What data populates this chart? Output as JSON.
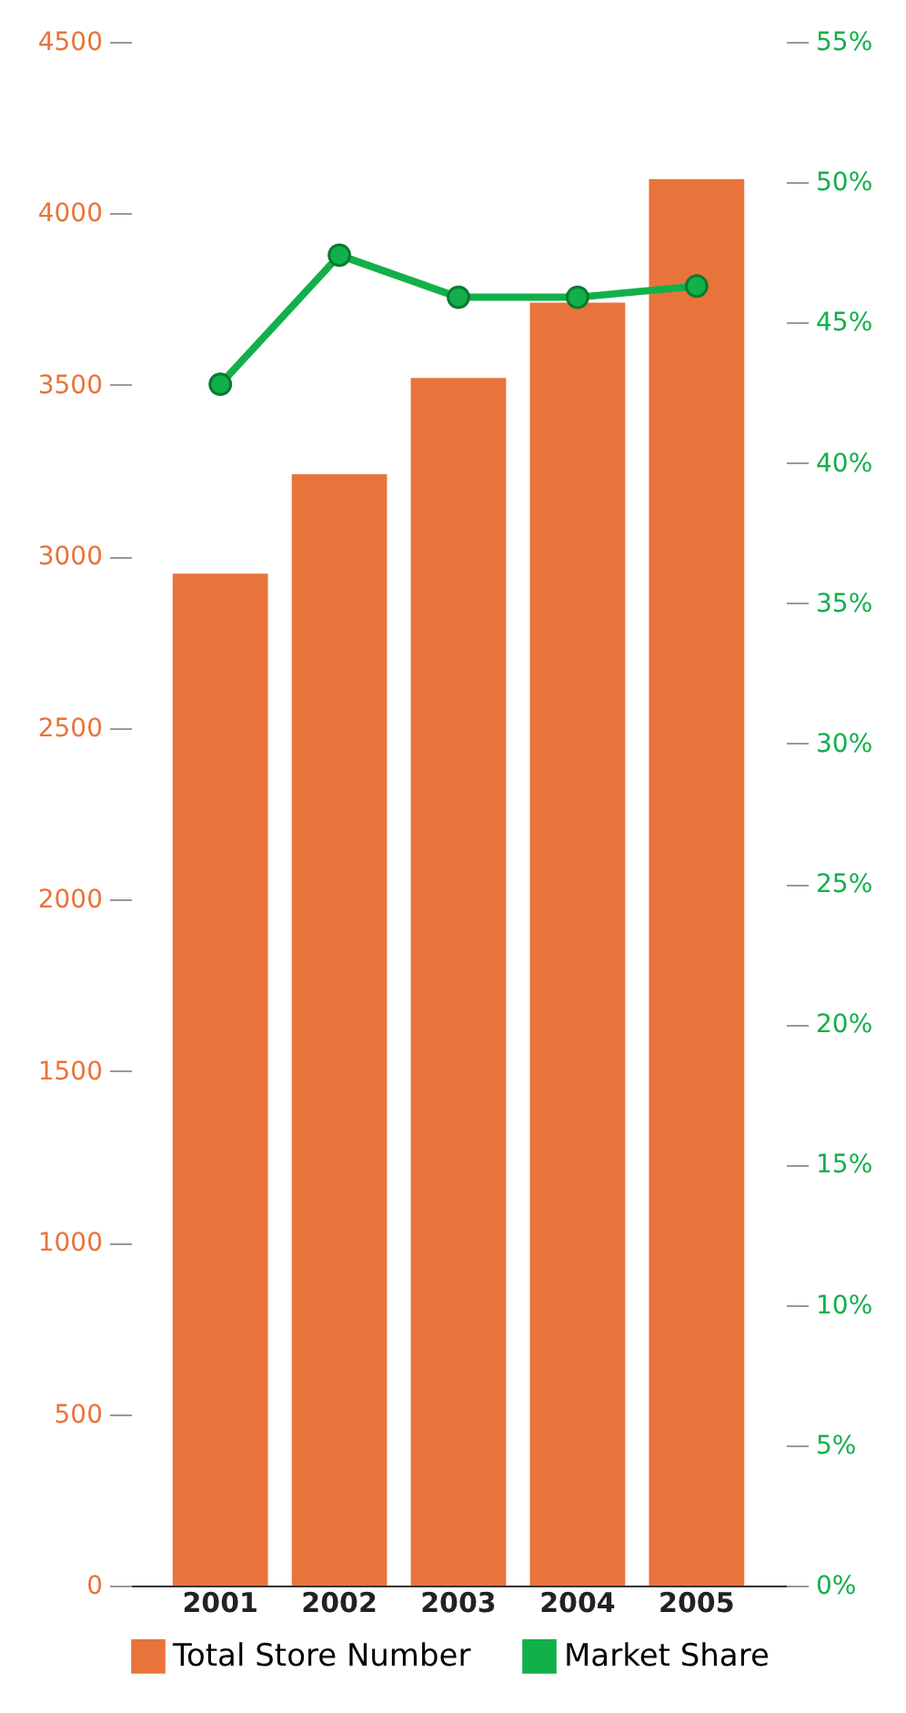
{
  "chart_data": {
    "type": "bar",
    "categories": [
      "2001",
      "2002",
      "2003",
      "2004",
      "2005"
    ],
    "series": [
      {
        "name": "Total Store Number",
        "color": "#e8743b",
        "values": [
          2950,
          3240,
          3520,
          3740,
          4100
        ]
      },
      {
        "name": "Market Share",
        "type": "line",
        "axis": "y2",
        "color": "#12b04a",
        "values": [
          42.8,
          47.4,
          45.9,
          45.9,
          46.3
        ]
      }
    ],
    "ylim": [
      0,
      4500
    ],
    "yticks": [
      0,
      500,
      1000,
      1500,
      2000,
      2500,
      3000,
      3500,
      4000,
      4500
    ],
    "y2lim": [
      0,
      55
    ],
    "y2ticks": [
      {
        "value": 0,
        "label": "0%"
      },
      {
        "value": 5,
        "label": "5%"
      },
      {
        "value": 10,
        "label": "10%"
      },
      {
        "value": 15,
        "label": "15%"
      },
      {
        "value": 20,
        "label": "20%"
      },
      {
        "value": 25,
        "label": "25%"
      },
      {
        "value": 30,
        "label": "30%"
      },
      {
        "value": 35,
        "label": "35%"
      },
      {
        "value": 40,
        "label": "40%"
      },
      {
        "value": 45,
        "label": "45%"
      },
      {
        "value": 50,
        "label": "50%"
      },
      {
        "value": 55,
        "label": "55%"
      }
    ],
    "grid": false,
    "legend": "bottom",
    "marker": "circle"
  }
}
